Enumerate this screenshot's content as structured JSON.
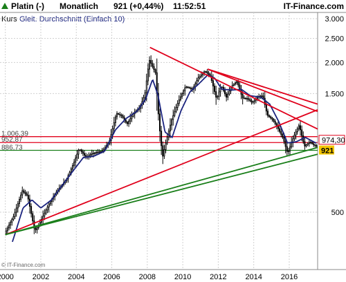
{
  "header": {
    "instrument": "Platin (-)",
    "interval": "Monatlich",
    "quote": "921 (+0,44%)",
    "time": "11:52:51",
    "brand": "IT-Finance.com"
  },
  "legend": {
    "price_label": "Kurs",
    "ma_label": "Gleit. Durchschnitt (Einfach 10)"
  },
  "watermark": "© IT-Finance.com",
  "colors": {
    "ma_line": "#1a237e",
    "resistance": "#e0001b",
    "support": "#1a7f1a",
    "candle_up": "#ffffff",
    "candle_down": "#000000",
    "grid": "#d0d0d0",
    "last_price_badge": "#f2c500",
    "level_badge_border": "#e0001b"
  },
  "chart_data": {
    "type": "candlestick",
    "scale": "log",
    "ylim": [
      300,
      3000
    ],
    "xlim": [
      1999.7,
      2017.6
    ],
    "x_ticks": [
      "2000",
      "2002",
      "2004",
      "2006",
      "2008",
      "2010",
      "2012",
      "2014",
      "2016"
    ],
    "x_tick_values": [
      2000,
      2002,
      2004,
      2006,
      2008,
      2010,
      2012,
      2014,
      2016
    ],
    "y_ticks": [
      "3.000",
      "2.500",
      "2.000",
      "1.500",
      "500"
    ],
    "y_tick_values": [
      3000,
      2500,
      2000,
      1500,
      500
    ],
    "last_price": "921",
    "last_price_value": 921,
    "marked_level": "974,30",
    "marked_level_value": 974.3,
    "horizontal_levels": [
      {
        "label": "1.006,39",
        "value": 1006.39,
        "color": "#e0001b"
      },
      {
        "label": "952,87",
        "value": 952.87,
        "color": "#e0001b"
      },
      {
        "label": "886,73",
        "value": 886.73,
        "color": "#1a7f1a"
      }
    ],
    "price_anchors": [
      [
        2000.0,
        410
      ],
      [
        2000.5,
        480
      ],
      [
        2001.0,
        610
      ],
      [
        2001.3,
        580
      ],
      [
        2001.7,
        420
      ],
      [
        2001.9,
        440
      ],
      [
        2002.5,
        540
      ],
      [
        2002.9,
        600
      ],
      [
        2003.5,
        680
      ],
      [
        2003.9,
        790
      ],
      [
        2004.2,
        900
      ],
      [
        2004.6,
        830
      ],
      [
        2004.9,
        860
      ],
      [
        2005.5,
        880
      ],
      [
        2005.9,
        960
      ],
      [
        2006.3,
        1250
      ],
      [
        2006.6,
        1220
      ],
      [
        2006.9,
        1130
      ],
      [
        2007.3,
        1260
      ],
      [
        2007.6,
        1310
      ],
      [
        2007.9,
        1480
      ],
      [
        2008.15,
        2050
      ],
      [
        2008.3,
        1950
      ],
      [
        2008.5,
        1820
      ],
      [
        2008.7,
        1150
      ],
      [
        2008.9,
        830
      ],
      [
        2009.1,
        960
      ],
      [
        2009.4,
        1170
      ],
      [
        2009.8,
        1400
      ],
      [
        2010.2,
        1600
      ],
      [
        2010.6,
        1560
      ],
      [
        2010.9,
        1730
      ],
      [
        2011.3,
        1850
      ],
      [
        2011.6,
        1760
      ],
      [
        2011.8,
        1560
      ],
      [
        2011.95,
        1420
      ],
      [
        2012.2,
        1620
      ],
      [
        2012.5,
        1450
      ],
      [
        2012.8,
        1610
      ],
      [
        2013.1,
        1680
      ],
      [
        2013.4,
        1440
      ],
      [
        2013.7,
        1430
      ],
      [
        2013.95,
        1380
      ],
      [
        2014.3,
        1460
      ],
      [
        2014.55,
        1470
      ],
      [
        2014.8,
        1230
      ],
      [
        2015.1,
        1180
      ],
      [
        2015.4,
        1090
      ],
      [
        2015.7,
        990
      ],
      [
        2015.95,
        860
      ],
      [
        2016.3,
        1010
      ],
      [
        2016.6,
        1120
      ],
      [
        2016.9,
        920
      ],
      [
        2017.2,
        960
      ],
      [
        2017.4,
        935
      ],
      [
        2017.55,
        921
      ]
    ],
    "ma_anchors": [
      [
        2000.4,
        380
      ],
      [
        2001.0,
        520
      ],
      [
        2001.5,
        560
      ],
      [
        2002.0,
        520
      ],
      [
        2002.6,
        560
      ],
      [
        2003.2,
        640
      ],
      [
        2003.8,
        730
      ],
      [
        2004.4,
        830
      ],
      [
        2005.0,
        840
      ],
      [
        2005.6,
        880
      ],
      [
        2006.2,
        1070
      ],
      [
        2006.8,
        1190
      ],
      [
        2007.4,
        1270
      ],
      [
        2007.9,
        1420
      ],
      [
        2008.3,
        1710
      ],
      [
        2008.6,
        1480
      ],
      [
        2009.0,
        1050
      ],
      [
        2009.4,
        1000
      ],
      [
        2009.9,
        1280
      ],
      [
        2010.4,
        1520
      ],
      [
        2010.9,
        1640
      ],
      [
        2011.4,
        1780
      ],
      [
        2011.8,
        1730
      ],
      [
        2012.2,
        1560
      ],
      [
        2012.8,
        1550
      ],
      [
        2013.3,
        1560
      ],
      [
        2013.8,
        1470
      ],
      [
        2014.4,
        1450
      ],
      [
        2014.9,
        1360
      ],
      [
        2015.4,
        1160
      ],
      [
        2015.9,
        950
      ],
      [
        2016.4,
        960
      ],
      [
        2016.9,
        1000
      ],
      [
        2017.55,
        945
      ]
    ],
    "trendlines": [
      {
        "kind": "resistance",
        "color": "#e0001b",
        "from": [
          2008.15,
          2300
        ],
        "to": [
          2017.6,
          1080
        ]
      },
      {
        "kind": "resistance",
        "color": "#e0001b",
        "from": [
          2011.4,
          1880
        ],
        "to": [
          2017.6,
          1270
        ]
      },
      {
        "kind": "resistance",
        "color": "#e0001b",
        "from": [
          2011.4,
          1880
        ],
        "to": [
          2017.6,
          1360
        ]
      },
      {
        "kind": "resistance",
        "color": "#e0001b",
        "from": [
          2000.0,
          406
        ],
        "to": [
          2017.6,
          1290
        ]
      },
      {
        "kind": "support",
        "color": "#1a7f1a",
        "from": [
          2000.0,
          406
        ],
        "to": [
          2017.6,
          910
        ]
      },
      {
        "kind": "support",
        "color": "#1a7f1a",
        "from": [
          2000.0,
          406
        ],
        "to": [
          2017.6,
          855
        ]
      }
    ]
  }
}
